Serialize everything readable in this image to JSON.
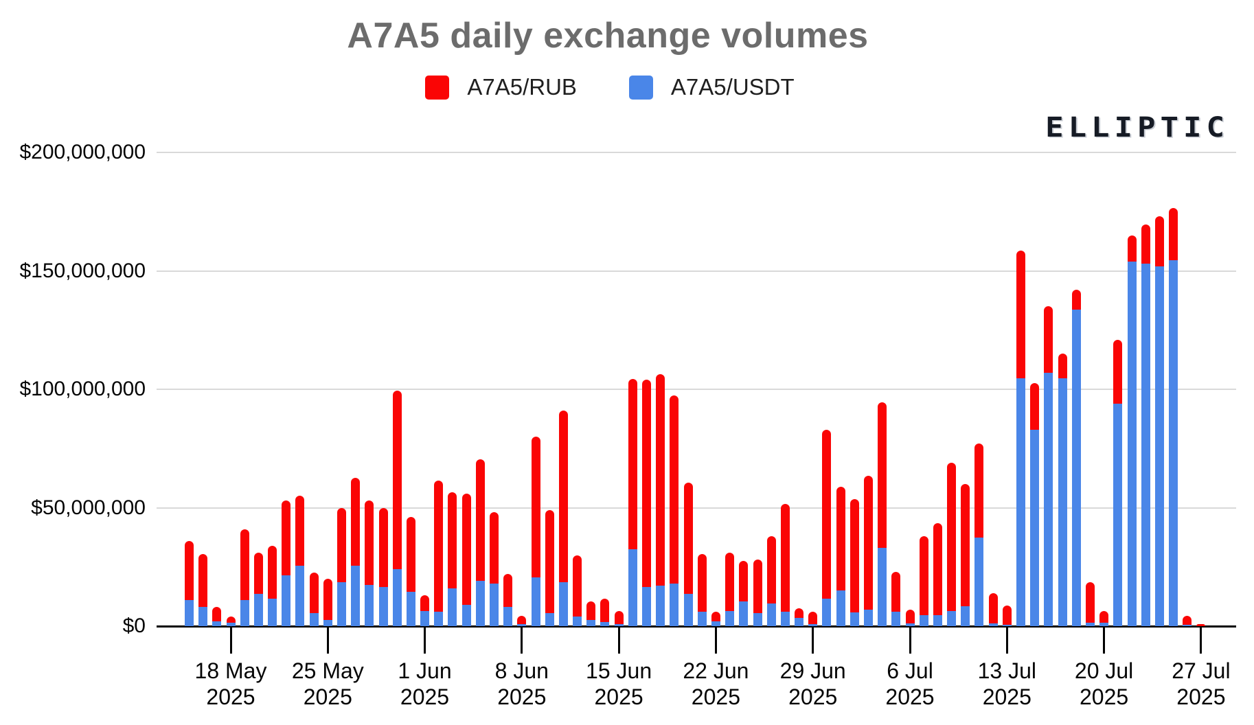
{
  "header": {
    "title": "A7A5 daily exchange volumes",
    "watermark": "ELLIPTIC"
  },
  "legend": {
    "items": [
      {
        "label": "A7A5/RUB",
        "color": "#fa0505"
      },
      {
        "label": "A7A5/USDT",
        "color": "#4a86e8"
      }
    ]
  },
  "chart_data": {
    "type": "bar",
    "stacked": true,
    "grid": true,
    "legend_position": "top",
    "units": "USD millions",
    "start_date": "2025-05-15",
    "end_date": "2025-07-27",
    "ylim_musd": [
      0,
      200
    ],
    "y_ticks": [
      {
        "label": "$200,000,000",
        "musd": 200
      },
      {
        "label": "$150,000,000",
        "musd": 150
      },
      {
        "label": "$100,000,000",
        "musd": 100
      },
      {
        "label": "$50,000,000",
        "musd": 50
      },
      {
        "label": "$0",
        "musd": 0
      }
    ],
    "x_ticks": [
      {
        "line1": "18 May",
        "line2": "2025",
        "day": 3
      },
      {
        "line1": "25 May",
        "line2": "2025",
        "day": 10
      },
      {
        "line1": "1 Jun",
        "line2": "2025",
        "day": 17
      },
      {
        "line1": "8 Jun",
        "line2": "2025",
        "day": 24
      },
      {
        "line1": "15 Jun",
        "line2": "2025",
        "day": 31
      },
      {
        "line1": "22 Jun",
        "line2": "2025",
        "day": 38
      },
      {
        "line1": "29 Jun",
        "line2": "2025",
        "day": 45
      },
      {
        "line1": "6 Jul",
        "line2": "2025",
        "day": 52
      },
      {
        "line1": "13 Jul",
        "line2": "2025",
        "day": 59
      },
      {
        "line1": "20 Jul",
        "line2": "2025",
        "day": 66
      },
      {
        "line1": "27 Jul",
        "line2": "2025",
        "day": 73
      }
    ],
    "series": [
      {
        "name": "A7A5/RUB",
        "color": "#fa0505",
        "stack_position": "top",
        "values_musd": [
          25,
          22.5,
          6,
          2.7,
          30,
          17.5,
          22.5,
          31.5,
          29.5,
          17,
          17.3,
          31.5,
          37,
          35.5,
          33.5,
          75.5,
          31.5,
          6.7,
          55.5,
          40.5,
          47,
          51.5,
          30,
          14,
          3.5,
          59.5,
          43.5,
          72.5,
          26,
          7.8,
          9.7,
          5.5,
          72,
          87.5,
          89.5,
          79.5,
          47,
          24.5,
          4,
          24.7,
          17,
          22.5,
          28.5,
          45.5,
          4,
          5,
          71.5,
          44,
          47.8,
          56.5,
          61.5,
          17,
          5.7,
          33.5,
          39,
          62.5,
          51.7,
          39.5,
          13,
          8.2,
          54,
          19.5,
          28,
          10.5,
          8.5,
          17.2,
          5.2,
          27,
          11,
          16.5,
          21,
          22,
          4,
          1
        ]
      },
      {
        "name": "A7A5/USDT",
        "color": "#4a86e8",
        "stack_position": "bottom",
        "values_musd": [
          11,
          8,
          2,
          1.3,
          11,
          13.5,
          11.5,
          21.5,
          25.5,
          5.5,
          2.7,
          18.5,
          25.5,
          17.5,
          16.5,
          24,
          14.5,
          6.3,
          6,
          16,
          9,
          19,
          18,
          8,
          1,
          20.5,
          5.5,
          18.5,
          4,
          2.7,
          1.8,
          1,
          32.5,
          16.5,
          17,
          18,
          13.5,
          6,
          2,
          6.3,
          10.5,
          5.5,
          9.5,
          6,
          3.5,
          1,
          11.5,
          15,
          5.7,
          7,
          33,
          6,
          1.3,
          4.5,
          4.5,
          6.5,
          8.3,
          37.5,
          1,
          0.5,
          104.5,
          83,
          107,
          104.5,
          133.5,
          1.3,
          1.3,
          94,
          154,
          153,
          152,
          154.5,
          0.5,
          0
        ]
      }
    ]
  }
}
